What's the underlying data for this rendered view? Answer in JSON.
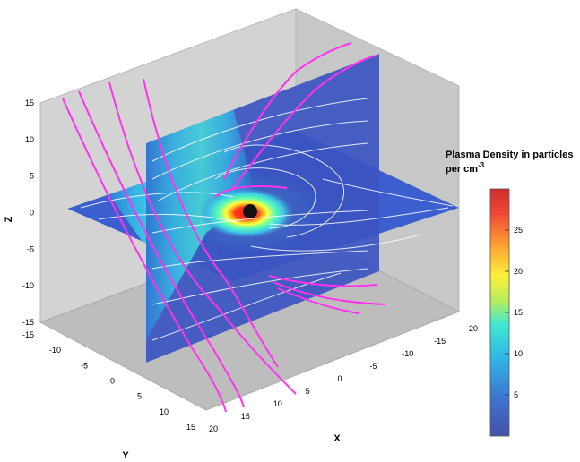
{
  "chart_data": {
    "type": "3d-slice-plot",
    "title": "",
    "colorbar": {
      "title_line1": "Plasma Density in particles",
      "title_line2": "per cm",
      "title_exponent": "-3",
      "range": [
        0,
        30
      ],
      "ticks": [
        5,
        10,
        15,
        20,
        25
      ],
      "colormap": "jet"
    },
    "axes": {
      "x": {
        "label": "X",
        "range": [
          -20,
          20
        ],
        "ticks": [
          -20,
          -15,
          -10,
          -5,
          0,
          5,
          10,
          15,
          20
        ]
      },
      "y": {
        "label": "Y",
        "range": [
          -15,
          15
        ],
        "ticks": [
          -15,
          -10,
          -5,
          0,
          5,
          10,
          15
        ]
      },
      "z": {
        "label": "Z",
        "range": [
          -15,
          15
        ],
        "ticks": [
          -15,
          -10,
          -5,
          0,
          5,
          10,
          15
        ]
      }
    },
    "slices": [
      "z=0 plane",
      "y=0 plane"
    ],
    "overlays": [
      "white streamlines",
      "magenta field lines"
    ],
    "colors": {
      "field_lines": "#ff33ee",
      "streamlines": "#ffffff",
      "background_box": "#d3d3d3"
    }
  }
}
